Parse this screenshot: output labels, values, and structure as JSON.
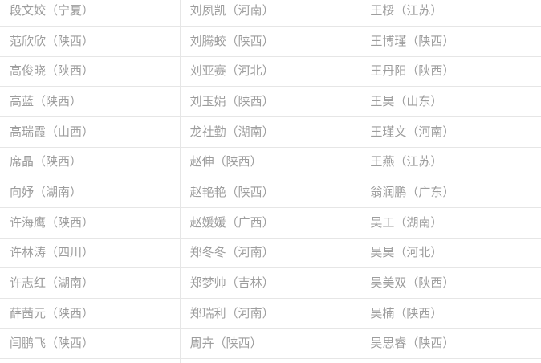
{
  "colors": {
    "background": "#ffffff",
    "text": "#9d9d9d",
    "border": "#e6e6e6"
  },
  "table": {
    "columns": 3,
    "rows": [
      {
        "cells": [
          "段文姣（宁夏）",
          "刘夙凯（河南）",
          "王桵（江苏）"
        ]
      },
      {
        "cells": [
          "范欣欣（陕西）",
          "刘腾蛟（陕西）",
          "王博瑾（陕西）"
        ]
      },
      {
        "cells": [
          "高俊晓（陕西）",
          "刘亚赛（河北）",
          "王丹阳（陕西）"
        ]
      },
      {
        "cells": [
          "高蓝（陕西）",
          "刘玉娟（陕西）",
          "王昊（山东）"
        ]
      },
      {
        "cells": [
          "高瑞霞（山西）",
          "龙社勤（湖南）",
          "王瑾文（河南）"
        ]
      },
      {
        "cells": [
          "席晶（陕西）",
          "赵伸（陕西）",
          "王燕（江苏）"
        ]
      },
      {
        "cells": [
          "向妤（湖南）",
          "赵艳艳（陕西）",
          "翁润鹏（广东）"
        ]
      },
      {
        "cells": [
          "许海鹰（陕西）",
          "赵媛媛（广西）",
          "吴工（湖南）"
        ]
      },
      {
        "cells": [
          "许林涛（四川）",
          "郑冬冬（河南）",
          "吴昊（河北）"
        ]
      },
      {
        "cells": [
          "许志红（湖南）",
          "郑梦帅（吉林）",
          "吴美双（陕西）"
        ]
      },
      {
        "cells": [
          "薛茜元（陕西）",
          "郑瑞利（河南）",
          "吴楠（陕西）"
        ]
      },
      {
        "cells": [
          "闫鹏飞（陕西）",
          "周卉（陕西）",
          "吴思睿（陕西）"
        ]
      }
    ]
  }
}
